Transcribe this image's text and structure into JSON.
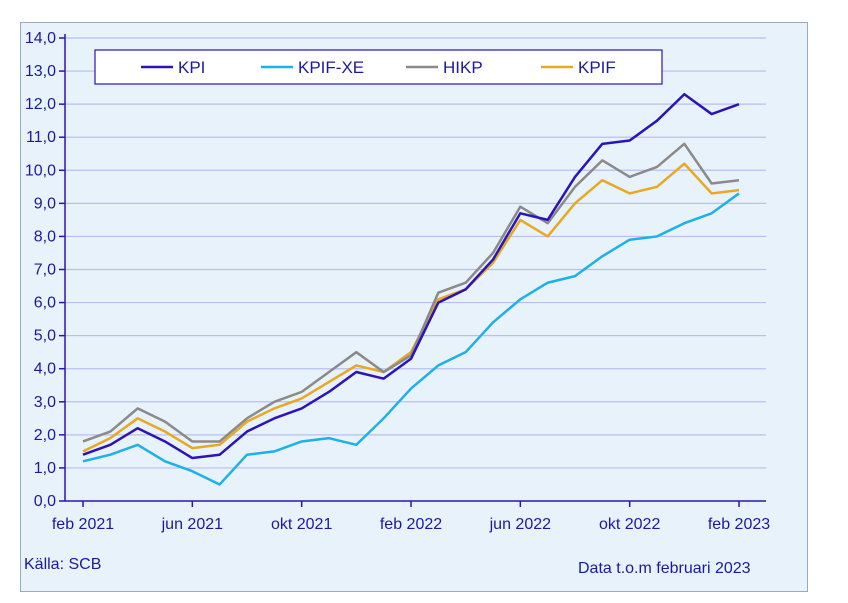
{
  "chart_data": {
    "type": "line",
    "title": "",
    "xlabel": "",
    "ylabel": "",
    "ylim": [
      0,
      14
    ],
    "yticks": [
      "0,0",
      "1,0",
      "2,0",
      "3,0",
      "4,0",
      "5,0",
      "6,0",
      "7,0",
      "8,0",
      "9,0",
      "10,0",
      "11,0",
      "12,0",
      "13,0",
      "14,0"
    ],
    "xtick_labels": [
      "feb 2021",
      "jun 2021",
      "okt 2021",
      "feb 2022",
      "jun 2022",
      "okt 2022",
      "feb 2023"
    ],
    "xtick_month_index": [
      0,
      4,
      8,
      12,
      16,
      20,
      24
    ],
    "x": [
      "feb 2021",
      "mar 2021",
      "apr 2021",
      "maj 2021",
      "jun 2021",
      "jul 2021",
      "aug 2021",
      "sep 2021",
      "okt 2021",
      "nov 2021",
      "dec 2021",
      "jan 2022",
      "feb 2022",
      "mar 2022",
      "apr 2022",
      "maj 2022",
      "jun 2022",
      "jul 2022",
      "aug 2022",
      "sep 2022",
      "okt 2022",
      "nov 2022",
      "dec 2022",
      "jan 2023",
      "feb 2023"
    ],
    "grid": true,
    "legend_position": "top",
    "series": [
      {
        "name": "KPI",
        "color": "#2a14b8",
        "values": [
          1.4,
          1.7,
          2.2,
          1.8,
          1.3,
          1.4,
          2.1,
          2.5,
          2.8,
          3.3,
          3.9,
          3.7,
          4.3,
          6.0,
          6.4,
          7.3,
          8.7,
          8.5,
          9.8,
          10.8,
          10.9,
          11.5,
          12.3,
          11.7,
          12.0
        ]
      },
      {
        "name": "KPIF-XE",
        "color": "#1eb0e8",
        "values": [
          1.2,
          1.4,
          1.7,
          1.2,
          0.9,
          0.5,
          1.4,
          1.5,
          1.8,
          1.9,
          1.7,
          2.5,
          3.4,
          4.1,
          4.5,
          5.4,
          6.1,
          6.6,
          6.8,
          7.4,
          7.9,
          8.0,
          8.4,
          8.7,
          9.3
        ]
      },
      {
        "name": "HIKP",
        "color": "#8a8a8a",
        "values": [
          1.8,
          2.1,
          2.8,
          2.4,
          1.8,
          1.8,
          2.5,
          3.0,
          3.3,
          3.9,
          4.5,
          3.9,
          4.4,
          6.3,
          6.6,
          7.5,
          8.9,
          8.4,
          9.5,
          10.3,
          9.8,
          10.1,
          10.8,
          9.6,
          9.7
        ]
      },
      {
        "name": "KPIF",
        "color": "#e8a820",
        "values": [
          1.5,
          1.9,
          2.5,
          2.1,
          1.6,
          1.7,
          2.4,
          2.8,
          3.1,
          3.6,
          4.1,
          3.9,
          4.5,
          6.1,
          6.4,
          7.2,
          8.5,
          8.0,
          9.0,
          9.7,
          9.3,
          9.5,
          10.2,
          9.3,
          9.4
        ]
      }
    ]
  },
  "footer": {
    "source": "Källa: SCB",
    "note": "Data t.o.m februari 2023"
  }
}
